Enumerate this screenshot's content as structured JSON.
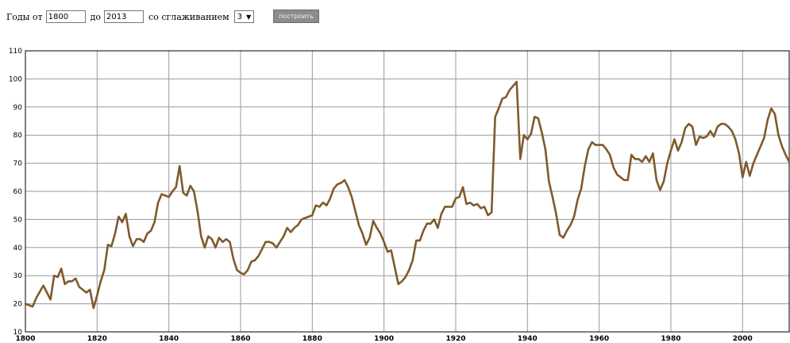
{
  "controls": {
    "years_from_label": "Годы от",
    "year_from": "1800",
    "years_to_label": "до",
    "year_to": "2013",
    "smoothing_label": "со сглаживанием",
    "smoothing_value": "3",
    "build_button": "построить"
  },
  "chart_data": {
    "type": "line",
    "title": "",
    "xlabel": "",
    "ylabel": "",
    "xlim": [
      1800,
      2013
    ],
    "ylim": [
      10,
      110
    ],
    "grid": true,
    "line_color": "#7f5a2c",
    "x_ticks": [
      1800,
      1820,
      1840,
      1860,
      1880,
      1900,
      1920,
      1940,
      1960,
      1980,
      2000
    ],
    "y_ticks": [
      10,
      20,
      30,
      40,
      50,
      60,
      70,
      80,
      90,
      100,
      110
    ],
    "x": [
      1800,
      1802,
      1803,
      1805,
      1807,
      1808,
      1809,
      1810,
      1811,
      1812,
      1813,
      1814,
      1815,
      1816,
      1817,
      1818,
      1819,
      1820,
      1821,
      1822,
      1823,
      1824,
      1825,
      1826,
      1827,
      1828,
      1829,
      1830,
      1831,
      1832,
      1833,
      1834,
      1835,
      1836,
      1837,
      1838,
      1839,
      1840,
      1841,
      1842,
      1843,
      1844,
      1845,
      1846,
      1847,
      1848,
      1849,
      1850,
      1851,
      1852,
      1853,
      1854,
      1855,
      1856,
      1857,
      1858,
      1859,
      1860,
      1861,
      1862,
      1863,
      1864,
      1865,
      1866,
      1867,
      1868,
      1869,
      1870,
      1871,
      1872,
      1873,
      1874,
      1875,
      1876,
      1877,
      1878,
      1879,
      1880,
      1881,
      1882,
      1883,
      1884,
      1885,
      1886,
      1887,
      1888,
      1889,
      1890,
      1891,
      1892,
      1893,
      1894,
      1895,
      1896,
      1897,
      1898,
      1899,
      1900,
      1901,
      1902,
      1903,
      1904,
      1905,
      1906,
      1907,
      1908,
      1909,
      1910,
      1911,
      1912,
      1913,
      1914,
      1915,
      1916,
      1917,
      1918,
      1919,
      1920,
      1921,
      1922,
      1923,
      1924,
      1925,
      1926,
      1927,
      1928,
      1929,
      1930,
      1931,
      1932,
      1933,
      1934,
      1935,
      1936,
      1937,
      1938,
      1939,
      1940,
      1941,
      1942,
      1943,
      1944,
      1945,
      1946,
      1947,
      1948,
      1949,
      1950,
      1951,
      1952,
      1953,
      1954,
      1955,
      1956,
      1957,
      1958,
      1959,
      1960,
      1961,
      1962,
      1963,
      1964,
      1965,
      1966,
      1967,
      1968,
      1969,
      1970,
      1971,
      1972,
      1973,
      1974,
      1975,
      1976,
      1977,
      1978,
      1979,
      1980,
      1981,
      1982,
      1983,
      1984,
      1985,
      1986,
      1987,
      1988,
      1989,
      1990,
      1991,
      1992,
      1993,
      1994,
      1995,
      1996,
      1997,
      1998,
      1999,
      2000,
      2001,
      2002,
      2003,
      2004,
      2005,
      2006,
      2007,
      2008,
      2009,
      2010,
      2011,
      2012,
      2013
    ],
    "values": [
      20,
      19,
      22,
      26.5,
      21.5,
      30,
      29.5,
      32.5,
      27,
      28,
      28,
      29,
      26,
      25,
      24,
      25,
      18.5,
      23,
      28,
      32,
      41,
      40.5,
      45,
      51,
      49,
      52,
      44,
      40.5,
      43,
      43,
      42,
      45,
      46,
      49,
      56,
      59,
      58.5,
      58,
      60,
      61.5,
      69,
      59.5,
      58.5,
      62,
      60,
      53,
      44,
      40,
      44,
      43,
      40,
      43.5,
      42,
      43,
      42,
      36,
      32,
      31,
      30.5,
      32,
      35,
      35.5,
      37,
      39.5,
      42,
      42,
      41.5,
      40,
      42,
      44,
      47,
      45.5,
      47,
      48,
      50,
      50.5,
      51,
      51.5,
      55,
      54.5,
      56,
      55,
      57.5,
      61,
      62.5,
      63,
      64,
      61.5,
      58,
      53,
      48,
      45,
      41,
      43.5,
      49.5,
      47,
      45,
      42,
      38.5,
      39,
      33,
      27,
      28,
      29.5,
      32,
      35.5,
      42.5,
      42.5,
      46,
      48.5,
      48.5,
      50,
      47,
      52,
      54.5,
      54.5,
      54.5,
      57.5,
      58,
      61.5,
      55.5,
      56,
      55,
      55.5,
      54,
      54.5,
      51.5,
      52.5,
      86.5,
      89.5,
      93,
      93.5,
      96,
      97.5,
      99,
      71.5,
      80,
      78.5,
      80.5,
      86.5,
      86,
      81,
      75,
      63.5,
      58,
      52,
      44.5,
      43.5,
      46,
      48,
      51,
      57,
      61,
      69,
      75,
      77.5,
      76.5,
      76.5,
      76.5,
      75,
      73,
      68.5,
      66,
      65,
      64,
      64,
      73,
      71.5,
      71.5,
      70.5,
      72.5,
      70.5,
      73.5,
      64,
      60.5,
      63.5,
      70,
      74.5,
      78.5,
      74.5,
      77.5,
      82.5,
      84,
      83,
      76.5,
      79.5,
      79,
      79.5,
      81.5,
      79.5,
      83,
      84,
      84,
      83,
      81.5,
      78.5,
      73.5,
      65,
      70.5,
      65.5,
      70,
      73,
      76,
      79,
      85.5,
      89.5,
      87.5,
      80,
      76,
      73,
      70.5
    ]
  }
}
